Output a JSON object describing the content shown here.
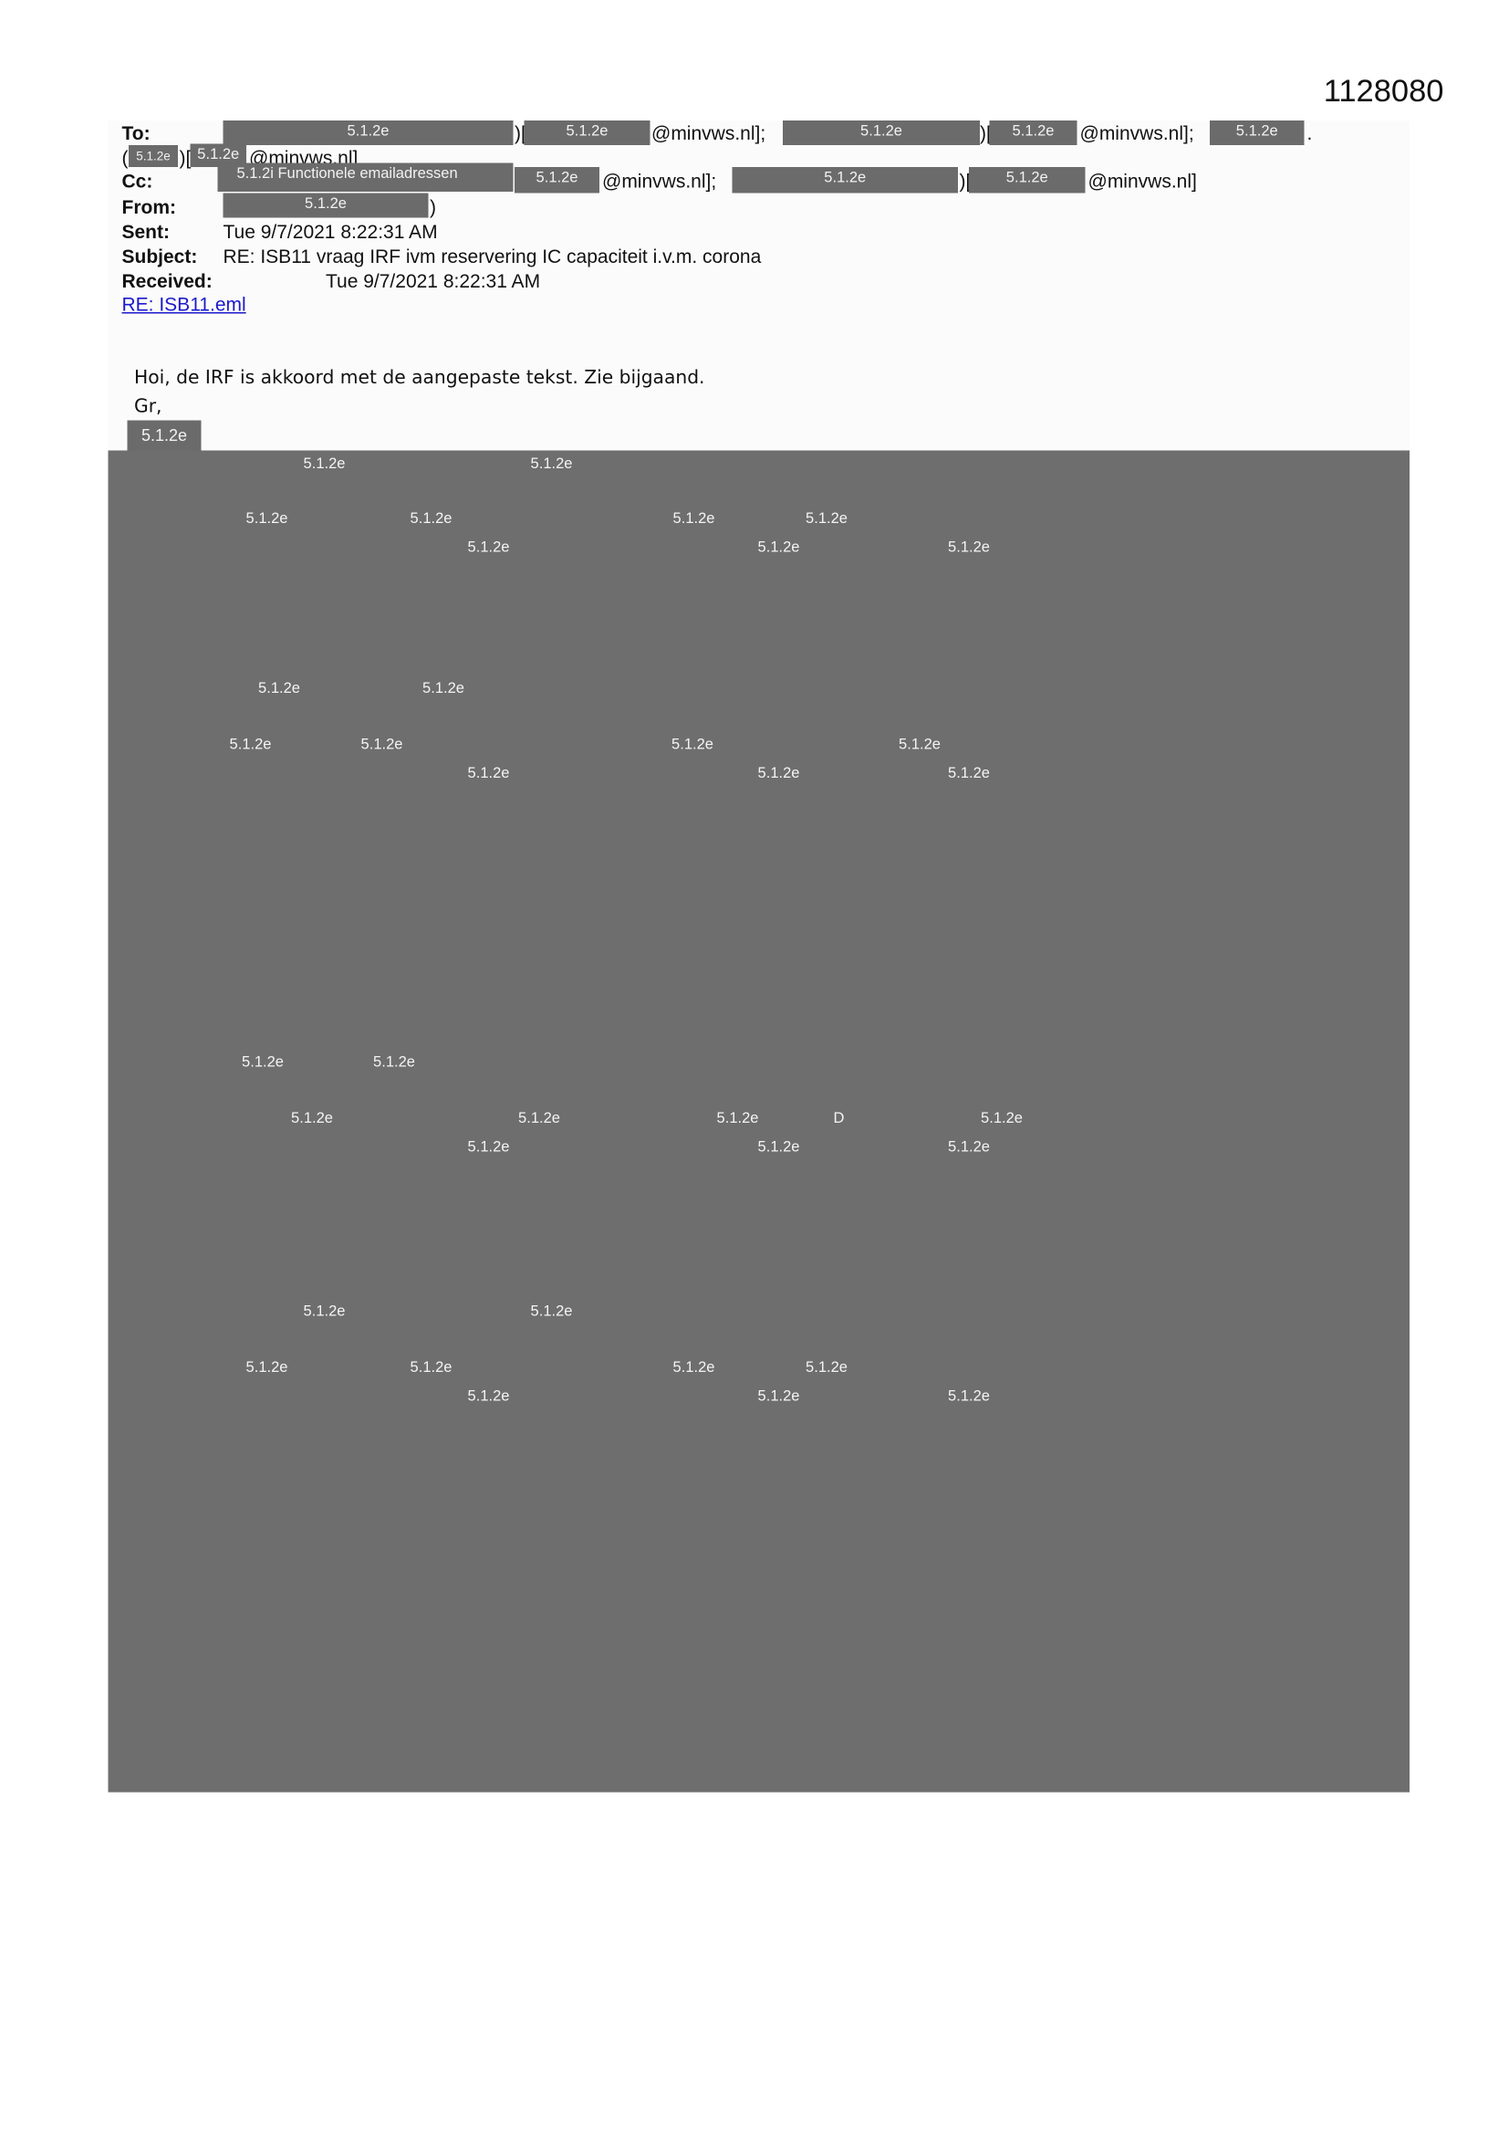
{
  "document_number": "1128080",
  "redaction_code": "5.1.2e",
  "redaction_functional": "5.1.2i Functionele emailadressen",
  "header": {
    "to_label": "To:",
    "cc_label": "Cc:",
    "from_label": "From:",
    "sent_label": "Sent:",
    "subject_label": "Subject:",
    "received_label": "Received:",
    "domain_sep": "@minvws.nl];",
    "domain_end": "@minvws.nl]",
    "bracket_sep": ")[",
    "open_paren": "(",
    "close_paren": ")",
    "dot": ".",
    "sent": "Tue 9/7/2021 8:22:31 AM",
    "subject": "RE: ISB11 vraag IRF ivm reservering  IC capaciteit i.v.m. corona",
    "received": "Tue 9/7/2021 8:22:31 AM",
    "attachment": "RE: ISB11.eml"
  },
  "body": {
    "line1": "Hoi, de IRF is akkoord met de aangepaste tekst. Zie bijgaand.",
    "line2": "Gr,"
  },
  "redacted_block": {
    "labels": [
      "5.1.2e",
      "5.1.2e",
      "5.1.2e",
      "5.1.2e",
      "5.1.2e",
      "5.1.2e",
      "5.1.2e",
      "5.1.2e",
      "5.1.2e",
      "5.1.2e",
      "5.1.2e",
      "5.1.2e",
      "5.1.2e",
      "5.1.2e",
      "5.1.2e",
      "5.1.2e",
      "5.1.2e",
      "5.1.2e",
      "5.1.2e",
      "5.1.2e",
      "5.1.2e",
      "5.1.2e",
      "5.1.2e",
      "D",
      "5.1.2e",
      "5.1.2e",
      "5.1.2e",
      "5.1.2e",
      "5.1.2e",
      "5.1.2e",
      "5.1.2e",
      "5.1.2e",
      "5.1.2e",
      "5.1.2e",
      "5.1.2e",
      "5.1.2e",
      "5.1.2e",
      "5.1.2e"
    ]
  },
  "colors": {
    "redaction": "#6e6e6e",
    "link": "#1a1acc"
  }
}
